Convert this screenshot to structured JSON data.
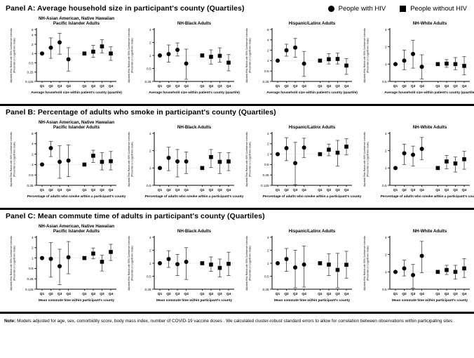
{
  "page": {
    "legend": [
      {
        "marker": "circle",
        "label": "People with HIV"
      },
      {
        "marker": "square",
        "label": "People without HIV"
      }
    ],
    "note_prefix": "Note:",
    "note": " Models adjusted for age, sex, comorbidity score, body mass index, number of COVID-19 vaccine doses . We calculated cluster-robust standard errors to allow for correlation between observations within participating sites ."
  },
  "chart_data": [
    {
      "type": "scatter",
      "style": "forest-plot",
      "panel_label": "Panel  A: Average household size in participant's county  (Quartiles)",
      "xlabel": "Average household size within patient's county (quartile)",
      "ylabel_line1": "Adjusted Risk  Ratios with  95% Confidence Intervals",
      "ylabel_line2": "(Presented on Logarithmic Scale)",
      "categories": [
        "Q1",
        "Q2",
        "Q3",
        "Q4"
      ],
      "charts": [
        {
          "title": [
            "NH-Asian American, Native Hawaiian",
            "Pacific Islander Adults"
          ],
          "yticks": [
            6,
            4,
            2,
            1,
            0.5,
            0.25,
            0.125
          ],
          "ylim": [
            0.125,
            6
          ],
          "series": [
            {
              "name": "People with HIV",
              "marker": "circle",
              "values": [
                1.0,
                1.55,
                2.3,
                0.65
              ],
              "lo": [
                1.0,
                0.7,
                0.95,
                0.27
              ],
              "hi": [
                1.0,
                3.2,
                4.5,
                1.55
              ]
            },
            {
              "name": "People without HIV",
              "marker": "square",
              "values": [
                1.0,
                1.15,
                1.7,
                1.0
              ],
              "lo": [
                0.95,
                0.75,
                1.05,
                0.6
              ],
              "hi": [
                1.06,
                1.85,
                2.8,
                1.65
              ]
            }
          ]
        },
        {
          "title": [
            "NH-Black  Adults"
          ],
          "yticks": [
            4,
            2,
            1,
            0.5,
            0.25
          ],
          "ylim": [
            0.25,
            4
          ],
          "series": [
            {
              "name": "People with HIV",
              "marker": "circle",
              "values": [
                1.0,
                1.08,
                1.35,
                0.65
              ],
              "lo": [
                1.0,
                0.7,
                0.97,
                0.28
              ],
              "hi": [
                1.0,
                1.75,
                1.95,
                1.4
              ]
            },
            {
              "name": "People without HIV",
              "marker": "square",
              "values": [
                1.0,
                0.93,
                0.98,
                0.68
              ],
              "lo": [
                0.96,
                0.63,
                0.7,
                0.44
              ],
              "hi": [
                1.04,
                1.35,
                1.5,
                1.05
              ]
            }
          ]
        },
        {
          "title": [
            "Hispanic/Latinx Adults"
          ],
          "yticks": [
            8,
            4,
            2,
            1,
            0.5,
            0.25
          ],
          "ylim": [
            0.25,
            8
          ],
          "series": [
            {
              "name": "People with HIV",
              "marker": "circle",
              "values": [
                1.0,
                2.0,
                2.4,
                0.82
              ],
              "lo": [
                1.0,
                1.35,
                1.25,
                0.35
              ],
              "hi": [
                1.0,
                3.0,
                4.4,
                1.85
              ]
            },
            {
              "name": "People without HIV",
              "marker": "square",
              "values": [
                1.0,
                1.1,
                1.12,
                0.72
              ],
              "lo": [
                0.95,
                0.8,
                0.8,
                0.4
              ],
              "hi": [
                1.05,
                1.6,
                1.65,
                1.15
              ]
            }
          ]
        },
        {
          "title": [
            "NH-White  Adults"
          ],
          "yticks": [
            4,
            2,
            1,
            0.5
          ],
          "ylim": [
            0.5,
            4
          ],
          "series": [
            {
              "name": "People with HIV",
              "marker": "circle",
              "values": [
                1.0,
                1.15,
                1.5,
                0.9
              ],
              "lo": [
                1.0,
                0.8,
                0.85,
                0.55
              ],
              "hi": [
                1.0,
                1.75,
                2.6,
                1.45
              ]
            },
            {
              "name": "People without HIV",
              "marker": "square",
              "values": [
                1.0,
                1.02,
                1.0,
                0.93
              ],
              "lo": [
                0.97,
                0.88,
                0.8,
                0.65
              ],
              "hi": [
                1.03,
                1.2,
                1.3,
                1.35
              ]
            }
          ]
        }
      ]
    },
    {
      "type": "scatter",
      "style": "forest-plot",
      "panel_label": "Panel  B: Percentage of adults who smoke in participant's county (Quartiles)",
      "xlabel": "Percentage of adults who smoke within a participant's county",
      "ylabel_line1": "Adjusted Risk  Ratios with  95% Confidence Intervals",
      "ylabel_line2": "(Presented on Logarithmic Scale)",
      "categories": [
        "Q1",
        "Q2",
        "Q3",
        "Q4"
      ],
      "charts": [
        {
          "title": [
            "NH-Asian American, Native Hawaiian",
            "Pacific Islander Adults"
          ],
          "yticks": [
            8,
            4,
            2,
            1,
            0.5,
            0.25
          ],
          "ylim": [
            0.25,
            8
          ],
          "series": [
            {
              "name": "People with HIV",
              "marker": "circle",
              "values": [
                1.0,
                3.0,
                1.2,
                1.3
              ],
              "lo": [
                1.0,
                1.7,
                0.4,
                0.45
              ],
              "hi": [
                1.0,
                4.7,
                3.5,
                3.7
              ]
            },
            {
              "name": "People without HIV",
              "marker": "square",
              "values": [
                1.0,
                1.8,
                1.2,
                1.25
              ],
              "lo": [
                0.95,
                1.15,
                0.7,
                0.7
              ],
              "hi": [
                1.05,
                2.6,
                2.2,
                2.4
              ]
            }
          ]
        },
        {
          "title": [
            "NH-Black  Adults"
          ],
          "yticks": [
            4,
            2,
            1,
            0.5
          ],
          "ylim": [
            0.5,
            4
          ],
          "series": [
            {
              "name": "People with HIV",
              "marker": "circle",
              "values": [
                1.0,
                1.5,
                1.3,
                1.3
              ],
              "lo": [
                1.0,
                0.9,
                0.7,
                0.8
              ],
              "hi": [
                1.0,
                2.3,
                2.1,
                1.9
              ]
            },
            {
              "name": "People without HIV",
              "marker": "square",
              "values": [
                1.0,
                1.55,
                1.28,
                1.3
              ],
              "lo": [
                0.96,
                1.02,
                0.8,
                0.9
              ],
              "hi": [
                1.04,
                2.1,
                1.85,
                1.85
              ]
            }
          ]
        },
        {
          "title": [
            "Hispanic/Latinx Adults"
          ],
          "yticks": [
            4,
            2,
            1,
            0.5,
            0.25,
            0.125
          ],
          "ylim": [
            0.125,
            4
          ],
          "series": [
            {
              "name": "People with HIV",
              "marker": "circle",
              "values": [
                1.0,
                1.5,
                0.55,
                1.55
              ],
              "lo": [
                1.0,
                0.65,
                0.13,
                0.8
              ],
              "hi": [
                1.0,
                3.0,
                2.2,
                2.9
              ]
            },
            {
              "name": "People without HIV",
              "marker": "square",
              "values": [
                1.0,
                1.35,
                1.1,
                1.65
              ],
              "lo": [
                0.95,
                0.9,
                0.45,
                0.95
              ],
              "hi": [
                1.05,
                1.95,
                2.5,
                2.8
              ]
            }
          ]
        },
        {
          "title": [
            "NH-White  Adults"
          ],
          "yticks": [
            4,
            2,
            1,
            0.5
          ],
          "ylim": [
            0.5,
            4
          ],
          "series": [
            {
              "name": "People with HIV",
              "marker": "circle",
              "values": [
                1.0,
                1.8,
                1.7,
                2.15
              ],
              "lo": [
                1.0,
                1.15,
                1.08,
                1.4
              ],
              "hi": [
                1.0,
                2.6,
                2.4,
                3.4
              ]
            },
            {
              "name": "People without HIV",
              "marker": "square",
              "values": [
                1.0,
                1.3,
                1.2,
                1.42
              ],
              "lo": [
                0.97,
                0.97,
                0.85,
                0.95
              ],
              "hi": [
                1.03,
                1.65,
                1.55,
                1.95
              ]
            }
          ]
        }
      ]
    },
    {
      "type": "scatter",
      "style": "forest-plot",
      "panel_label": "Panel  C: Mean commute time of adults in participant's county (Quartiles)",
      "xlabel": "Mean  commute time within participant's county",
      "ylabel_line1": "Adjusted Risk  Ratios with  95% Confidence Intervals",
      "ylabel_line2": "(Presented on Logarithmic Scale)",
      "categories": [
        "Q1",
        "Q2",
        "Q3",
        "Q4"
      ],
      "charts": [
        {
          "title": [
            "NH-Asian American, Native Hawaiian",
            "Pacific Islander Adults"
          ],
          "yticks": [
            4,
            2,
            1,
            0.5,
            0.25,
            0.125
          ],
          "ylim": [
            0.125,
            4
          ],
          "series": [
            {
              "name": "People with HIV",
              "marker": "circle",
              "values": [
                1.0,
                0.95,
                0.58,
                1.05
              ],
              "lo": [
                1.0,
                0.28,
                0.17,
                0.35
              ],
              "hi": [
                1.0,
                2.8,
                1.8,
                3.0
              ]
            },
            {
              "name": "People without HIV",
              "marker": "square",
              "values": [
                1.0,
                1.35,
                0.78,
                1.5
              ],
              "lo": [
                0.95,
                0.95,
                0.42,
                0.85
              ],
              "hi": [
                1.05,
                1.95,
                1.2,
                2.5
              ]
            }
          ]
        },
        {
          "title": [
            "NH-Black  Adults"
          ],
          "yticks": [
            4,
            2,
            1,
            0.5,
            0.25
          ],
          "ylim": [
            0.25,
            4
          ],
          "series": [
            {
              "name": "People with HIV",
              "marker": "circle",
              "values": [
                1.0,
                1.25,
                0.95,
                1.08
              ],
              "lo": [
                1.0,
                0.8,
                0.52,
                0.42
              ],
              "hi": [
                1.0,
                1.95,
                1.6,
                2.3
              ]
            },
            {
              "name": "People without HIV",
              "marker": "square",
              "values": [
                1.0,
                0.93,
                0.78,
                0.97
              ],
              "lo": [
                0.96,
                0.65,
                0.48,
                0.52
              ],
              "hi": [
                1.04,
                1.4,
                1.25,
                1.8
              ]
            }
          ]
        },
        {
          "title": [
            "Hispanic/Latinx Adults"
          ],
          "yticks": [
            4,
            2,
            1,
            0.5,
            0.25
          ],
          "ylim": [
            0.25,
            4
          ],
          "series": [
            {
              "name": "People with HIV",
              "marker": "circle",
              "values": [
                1.0,
                1.25,
                0.8,
                0.93
              ],
              "lo": [
                1.0,
                0.65,
                0.27,
                0.28
              ],
              "hi": [
                1.0,
                2.2,
                2.0,
                2.5
              ]
            },
            {
              "name": "People without HIV",
              "marker": "square",
              "values": [
                1.0,
                0.93,
                0.7,
                0.92
              ],
              "lo": [
                0.95,
                0.52,
                0.27,
                0.45
              ],
              "hi": [
                1.05,
                1.65,
                1.7,
                1.9
              ]
            }
          ]
        },
        {
          "title": [
            "NH-White  Adults"
          ],
          "yticks": [
            4,
            2,
            1,
            0.5
          ],
          "ylim": [
            0.5,
            4
          ],
          "series": [
            {
              "name": "People with HIV",
              "marker": "circle",
              "values": [
                1.0,
                1.15,
                0.88,
                1.9
              ],
              "lo": [
                1.0,
                0.85,
                0.52,
                0.97
              ],
              "hi": [
                1.0,
                1.6,
                1.35,
                3.4
              ]
            },
            {
              "name": "People without HIV",
              "marker": "square",
              "values": [
                1.0,
                1.08,
                1.0,
                1.15
              ],
              "lo": [
                0.97,
                0.9,
                0.75,
                0.8
              ],
              "hi": [
                1.03,
                1.3,
                1.3,
                1.7
              ]
            }
          ]
        }
      ]
    }
  ]
}
